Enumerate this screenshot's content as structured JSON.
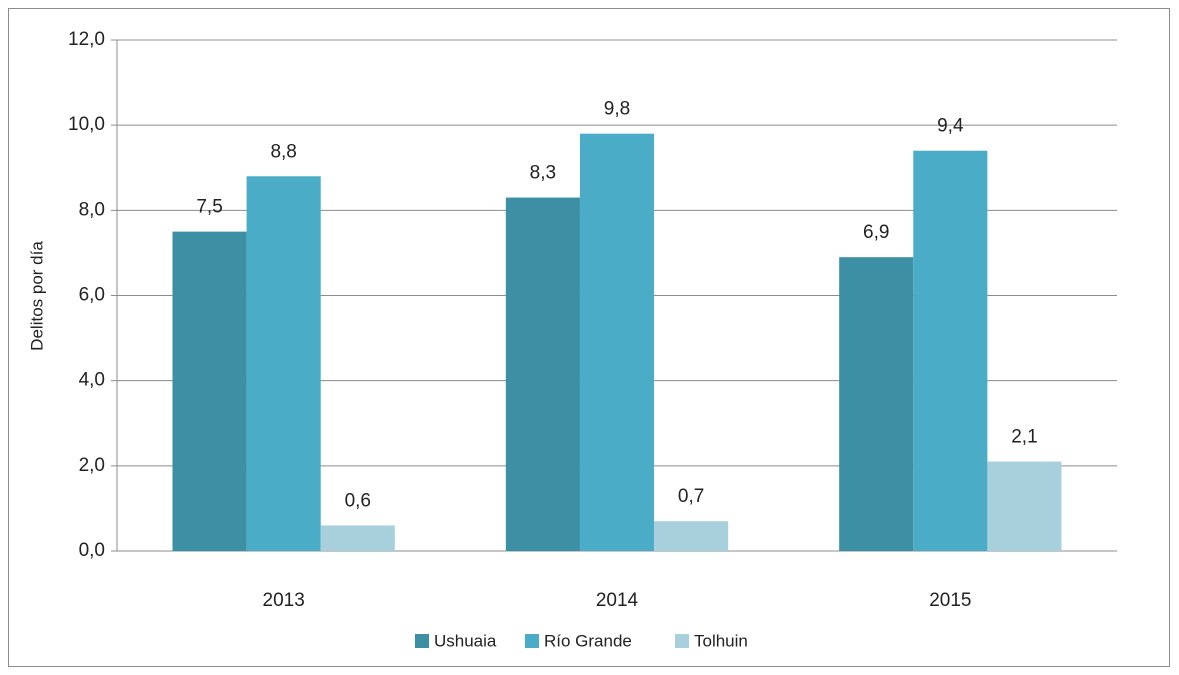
{
  "chart_data": {
    "type": "bar",
    "y_label": "Delitos por día",
    "categories": [
      "2013",
      "2014",
      "2015"
    ],
    "series": [
      {
        "name": "Ushuaia",
        "color": "#3d8fa3",
        "values": [
          7.5,
          8.3,
          6.9
        ],
        "value_labels": [
          "7,5",
          "8,3",
          "6,9"
        ]
      },
      {
        "name": "Río Grande",
        "color": "#4aacc6",
        "values": [
          8.8,
          9.8,
          9.4
        ],
        "value_labels": [
          "8,8",
          "9,8",
          "9,4"
        ]
      },
      {
        "name": "Tolhuin",
        "color": "#a8d0dc",
        "values": [
          0.6,
          0.7,
          2.1
        ],
        "value_labels": [
          "0,6",
          "0,7",
          "2,1"
        ]
      }
    ],
    "ylim": [
      0,
      12
    ],
    "yticks": [
      {
        "value": 0,
        "label": "0,0"
      },
      {
        "value": 2,
        "label": "2,0"
      },
      {
        "value": 4,
        "label": "4,0"
      },
      {
        "value": 6,
        "label": "6,0"
      },
      {
        "value": 8,
        "label": "8,0"
      },
      {
        "value": 10,
        "label": "10,0"
      },
      {
        "value": 12,
        "label": "12,0"
      }
    ],
    "grid": true,
    "legend": "bottom"
  }
}
